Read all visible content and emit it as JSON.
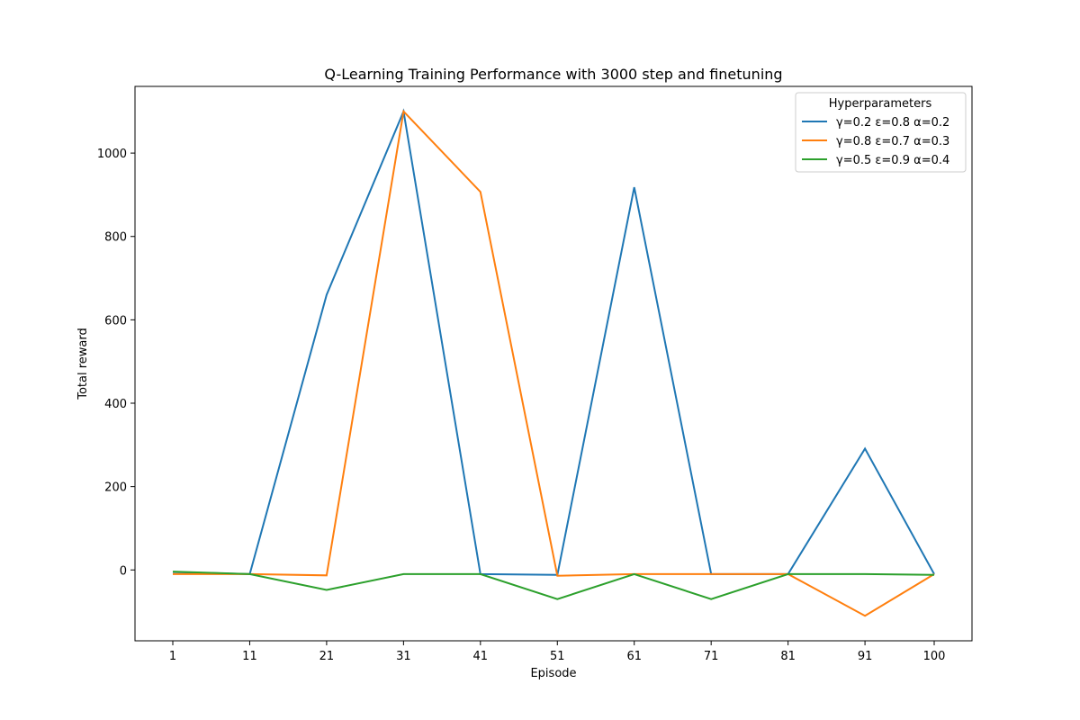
{
  "chart_data": {
    "type": "line",
    "title": "Q-Learning Training Performance with 3000 step and finetuning",
    "xlabel": "Episode",
    "ylabel": "Total reward",
    "x": [
      1,
      11,
      21,
      31,
      41,
      51,
      61,
      71,
      81,
      91,
      100
    ],
    "x_tick_labels": [
      "1",
      "11",
      "21",
      "31",
      "41",
      "51",
      "61",
      "71",
      "81",
      "91",
      "100"
    ],
    "y_ticks": [
      0,
      200,
      400,
      600,
      800,
      1000
    ],
    "y_tick_labels": [
      "0",
      "200",
      "400",
      "600",
      "800",
      "1000"
    ],
    "xlim": [
      1,
      100
    ],
    "ylim": [
      -170,
      1160
    ],
    "grid": false,
    "legend": {
      "title": "Hyperparameters",
      "placement": "top-right"
    },
    "series": [
      {
        "name": "γ=0.2 ε=0.8 α=0.2",
        "color": "#1f77b4",
        "values": [
          -5,
          -10,
          660,
          1100,
          -10,
          -12,
          918,
          -10,
          -10,
          291,
          -10
        ]
      },
      {
        "name": "γ=0.8 ε=0.7 α=0.3",
        "color": "#ff7f0e",
        "values": [
          -10,
          -10,
          -13,
          1100,
          907,
          -14,
          -10,
          -10,
          -10,
          -110,
          -10
        ]
      },
      {
        "name": "γ=0.5 ε=0.9 α=0.4",
        "color": "#2ca02c",
        "values": [
          -4,
          -10,
          -48,
          -10,
          -10,
          -70,
          -10,
          -70,
          -10,
          -10,
          -12
        ]
      }
    ]
  }
}
